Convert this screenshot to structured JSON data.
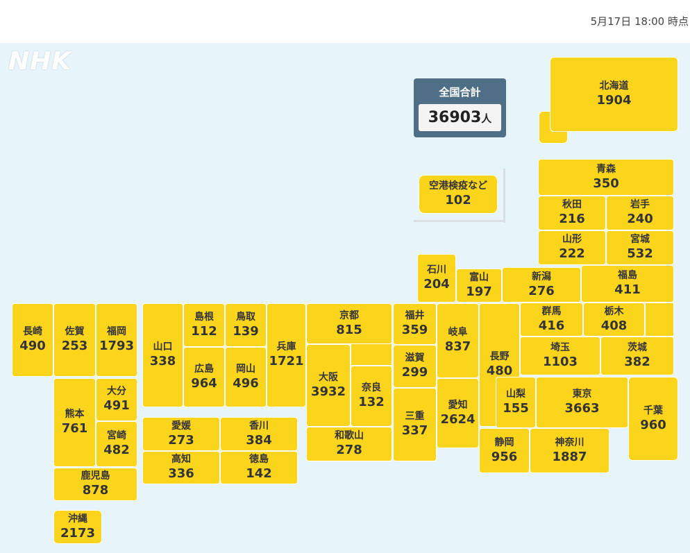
{
  "timestamp": "5月17日 18:00 時点",
  "logo": "NHK",
  "total": {
    "label": "全国合計",
    "value": "36903",
    "unit": "人"
  },
  "airport": {
    "label": "空港検疫など",
    "value": "102"
  },
  "prefs": {
    "hokkaido": {
      "name": "北海道",
      "count": "1904"
    },
    "aomori": {
      "name": "青森",
      "count": "350"
    },
    "akita": {
      "name": "秋田",
      "count": "216"
    },
    "iwate": {
      "name": "岩手",
      "count": "240"
    },
    "yamagata": {
      "name": "山形",
      "count": "222"
    },
    "miyagi": {
      "name": "宮城",
      "count": "532"
    },
    "ishikawa": {
      "name": "石川",
      "count": "204"
    },
    "toyama": {
      "name": "富山",
      "count": "197"
    },
    "niigata": {
      "name": "新潟",
      "count": "276"
    },
    "fukushima": {
      "name": "福島",
      "count": "411"
    },
    "nagasaki": {
      "name": "長崎",
      "count": "490"
    },
    "saga": {
      "name": "佐賀",
      "count": "253"
    },
    "fukuoka": {
      "name": "福岡",
      "count": "1793"
    },
    "yamaguchi": {
      "name": "山口",
      "count": "338"
    },
    "shimane": {
      "name": "島根",
      "count": "112"
    },
    "tottori": {
      "name": "鳥取",
      "count": "139"
    },
    "hyogo": {
      "name": "兵庫",
      "count": "1721"
    },
    "kyoto": {
      "name": "京都",
      "count": "815"
    },
    "fukui": {
      "name": "福井",
      "count": "359"
    },
    "gifu": {
      "name": "岐阜",
      "count": "837"
    },
    "nagano": {
      "name": "長野",
      "count": "480"
    },
    "gunma": {
      "name": "群馬",
      "count": "416"
    },
    "tochigi": {
      "name": "栃木",
      "count": "408"
    },
    "saitama": {
      "name": "埼玉",
      "count": "1103"
    },
    "ibaraki": {
      "name": "茨城",
      "count": "382"
    },
    "hiroshima": {
      "name": "広島",
      "count": "964"
    },
    "okayama": {
      "name": "岡山",
      "count": "496"
    },
    "osaka": {
      "name": "大阪",
      "count": "3932"
    },
    "nara": {
      "name": "奈良",
      "count": "132"
    },
    "shiga": {
      "name": "滋賀",
      "count": "299"
    },
    "kumamoto": {
      "name": "熊本",
      "count": "761"
    },
    "oita": {
      "name": "大分",
      "count": "491"
    },
    "miyazaki": {
      "name": "宮崎",
      "count": "482"
    },
    "aichi": {
      "name": "愛知",
      "count": "2624"
    },
    "mie": {
      "name": "三重",
      "count": "337"
    },
    "yamanashi": {
      "name": "山梨",
      "count": "155"
    },
    "tokyo": {
      "name": "東京",
      "count": "3663"
    },
    "chiba": {
      "name": "千葉",
      "count": "960"
    },
    "ehime": {
      "name": "愛媛",
      "count": "273"
    },
    "kagawa": {
      "name": "香川",
      "count": "384"
    },
    "wakayama": {
      "name": "和歌山",
      "count": "278"
    },
    "shizuoka": {
      "name": "静岡",
      "count": "956"
    },
    "kanagawa": {
      "name": "神奈川",
      "count": "1887"
    },
    "kochi": {
      "name": "高知",
      "count": "336"
    },
    "tokushima": {
      "name": "徳島",
      "count": "142"
    },
    "kagoshima": {
      "name": "鹿児島",
      "count": "878"
    },
    "okinawa": {
      "name": "沖縄",
      "count": "2173"
    }
  }
}
